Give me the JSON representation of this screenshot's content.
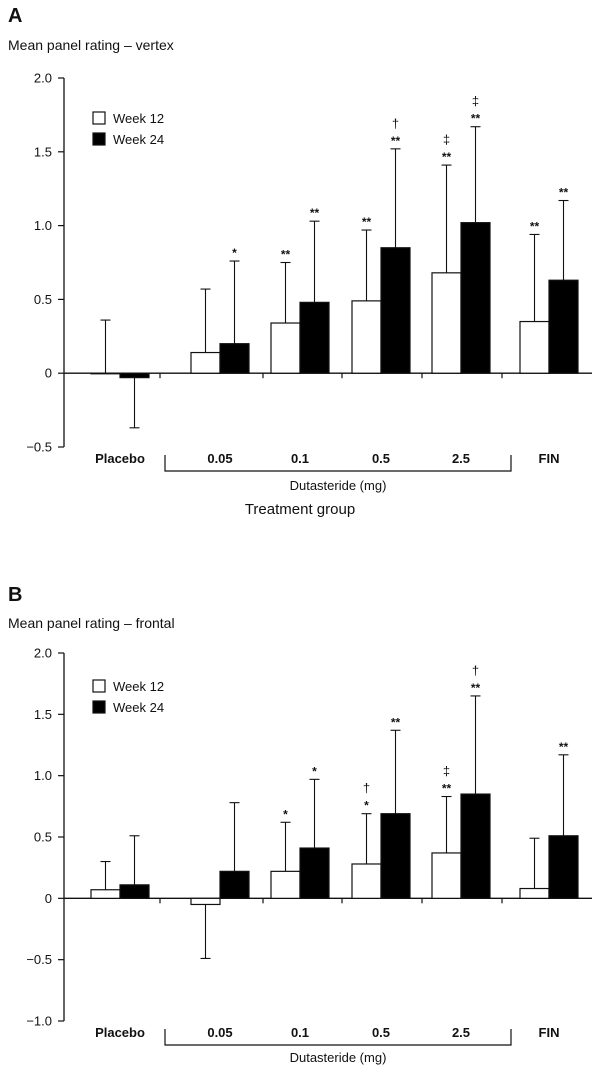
{
  "chart_data": [
    {
      "type": "bar",
      "panel": "A",
      "ylabel": "Mean panel rating – vertex",
      "xlabel": "Treatment group",
      "group_label": "Dutasteride (mg)",
      "ylim": [
        -0.5,
        2.0
      ],
      "yticks": [
        "2.0",
        "1.5",
        "1.0",
        "0.5",
        "0",
        "−0.5"
      ],
      "categories": [
        "Placebo",
        "0.05",
        "0.1",
        "0.5",
        "2.5",
        "FIN"
      ],
      "legend_position": "top-left",
      "series": [
        {
          "name": "Week 12",
          "color": "#ffffff",
          "values": [
            0.0,
            0.14,
            0.34,
            0.49,
            0.68,
            0.35
          ],
          "err_upper": [
            0.36,
            0.57,
            0.75,
            0.97,
            1.41,
            0.94
          ],
          "marks_above": [
            [],
            [],
            [
              "**"
            ],
            [
              "**"
            ],
            [
              "‡",
              "**"
            ],
            [
              "**"
            ]
          ]
        },
        {
          "name": "Week 24",
          "color": "#000000",
          "values": [
            -0.03,
            0.2,
            0.48,
            0.85,
            1.02,
            0.63
          ],
          "err_upper": [
            -0.37,
            0.76,
            1.03,
            1.52,
            1.67,
            1.17
          ],
          "marks_above": [
            [],
            [
              "*"
            ],
            [
              "**"
            ],
            [
              "†",
              "**"
            ],
            [
              "‡",
              "**"
            ],
            [
              "**"
            ]
          ]
        }
      ]
    },
    {
      "type": "bar",
      "panel": "B",
      "ylabel": "Mean panel rating – frontal",
      "xlabel": "Treatment group",
      "group_label": "Dutasteride (mg)",
      "ylim": [
        -1.0,
        2.0
      ],
      "yticks": [
        "2.0",
        "1.5",
        "1.0",
        "0.5",
        "0",
        "−0.5",
        "−1.0"
      ],
      "categories": [
        "Placebo",
        "0.05",
        "0.1",
        "0.5",
        "2.5",
        "FIN"
      ],
      "legend_position": "top-left",
      "series": [
        {
          "name": "Week 12",
          "color": "#ffffff",
          "values": [
            0.07,
            -0.05,
            0.22,
            0.28,
            0.37,
            0.08
          ],
          "err_upper": [
            0.3,
            -0.49,
            0.62,
            0.69,
            0.83,
            0.49
          ],
          "marks_above": [
            [],
            [],
            [
              "*"
            ],
            [
              "†",
              "*"
            ],
            [
              "‡",
              "**"
            ],
            []
          ]
        },
        {
          "name": "Week 24",
          "color": "#000000",
          "values": [
            0.11,
            0.22,
            0.41,
            0.69,
            0.85,
            0.51
          ],
          "err_upper": [
            0.51,
            0.78,
            0.97,
            1.37,
            1.65,
            1.17
          ],
          "marks_above": [
            [],
            [],
            [
              "*"
            ],
            [
              "**"
            ],
            [
              "†",
              "**"
            ],
            [
              "**"
            ]
          ]
        }
      ]
    }
  ]
}
